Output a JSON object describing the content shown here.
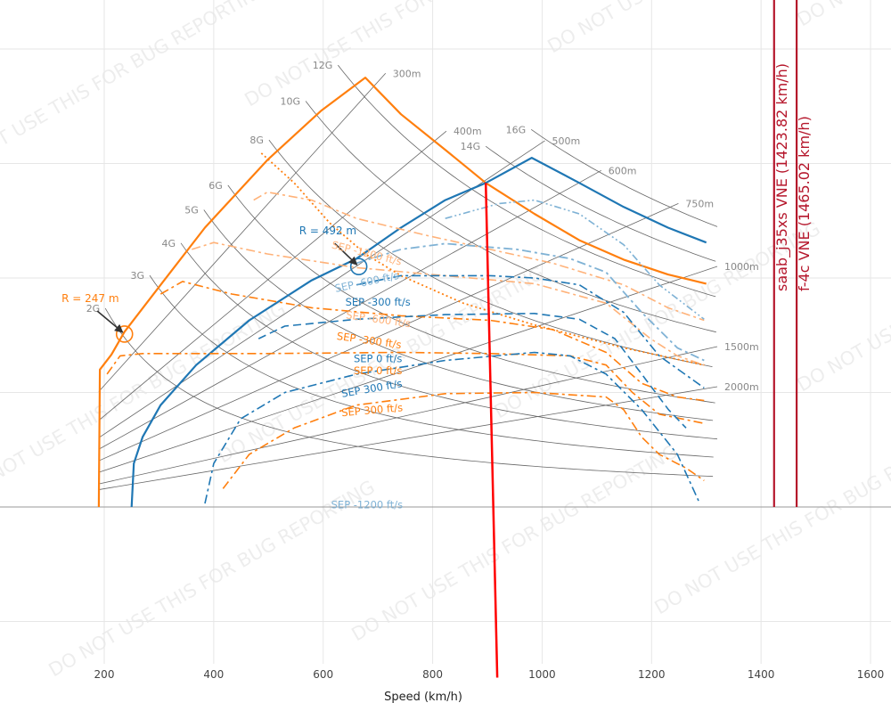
{
  "watermark": "DO NOT USE THIS FOR BUG REPORTING",
  "chart_data": {
    "type": "line",
    "xlabel": "Speed (km/h)",
    "ylabel": "",
    "xlim": [
      9.5,
      1637
    ],
    "ylim": [
      -13.7,
      44.3
    ],
    "xticks": [
      200,
      400,
      600,
      800,
      1000,
      1200,
      1400,
      1600
    ],
    "ygrid": [
      -10,
      0,
      10,
      20,
      30,
      40
    ],
    "grid": true,
    "colors": {
      "orange": "#ff7f0e",
      "orange_light": "#ffb279",
      "blue": "#1f77b4",
      "blue_light": "#7fb2d5",
      "vne": "#b5162b",
      "red": "#ff0000",
      "guide": "#666666"
    },
    "g_lines": [
      {
        "label": "2G",
        "n": 2,
        "v_start": 202
      },
      {
        "label": "3G",
        "n": 3,
        "v_start": 283
      },
      {
        "label": "4G",
        "n": 4,
        "v_start": 340
      },
      {
        "label": "5G",
        "n": 5,
        "v_start": 382
      },
      {
        "label": "6G",
        "n": 6,
        "v_start": 426
      },
      {
        "label": "8G",
        "n": 8,
        "v_start": 501
      },
      {
        "label": "10G",
        "n": 10,
        "v_start": 568
      },
      {
        "label": "12G",
        "n": 12,
        "v_start": 627
      },
      {
        "label": "14G",
        "n": 14,
        "v_start": 897
      },
      {
        "label": "16G",
        "n": 16,
        "v_start": 980
      }
    ],
    "radius_lines": [
      {
        "label": "300m",
        "r": 300,
        "v_end": 714
      },
      {
        "label": "400m",
        "r": 400,
        "v_end": 825
      },
      {
        "label": "500m",
        "r": 500,
        "v_end": 1005
      },
      {
        "label": "600m",
        "r": 600,
        "v_end": 1108
      },
      {
        "label": "750m",
        "r": 750,
        "v_end": 1249
      },
      {
        "label": "1000m",
        "r": 1000,
        "v_end": 1320
      },
      {
        "label": "1500m",
        "r": 1500,
        "v_end": 1320
      },
      {
        "label": "2000m",
        "r": 2000,
        "v_end": 1320
      }
    ],
    "series": [
      {
        "id": "orange-envelope",
        "color": "orange",
        "dash": "solid",
        "width": 2.2,
        "x": [
          190,
          192,
          213,
          237,
          303,
          384,
          498,
          596,
          677,
          742,
          823,
          897,
          986,
          1068,
          1149,
          1230,
          1300
        ],
        "y": [
          0,
          12.0,
          13.3,
          15.3,
          19.4,
          24.4,
          30.3,
          34.6,
          37.5,
          34.3,
          31.2,
          28.3,
          25.6,
          23.3,
          21.6,
          20.3,
          19.5
        ]
      },
      {
        "id": "blue-envelope",
        "color": "blue",
        "dash": "solid",
        "width": 2.2,
        "x": [
          250,
          254,
          270,
          303,
          368,
          465,
          579,
          661,
          742,
          823,
          897,
          981,
          1068,
          1149,
          1230,
          1300
        ],
        "y": [
          0,
          3.8,
          6.1,
          8.9,
          12.4,
          16.3,
          19.8,
          21.7,
          24.4,
          26.8,
          28.3,
          30.5,
          28.3,
          26.2,
          24.4,
          23.1
        ]
      },
      {
        "id": "orange-sep-minus-1200",
        "color": "orange_light",
        "dash": "dashdot",
        "width": 1.6,
        "x": [
          473,
          498,
          579,
          661,
          791,
          905,
          1019,
          1149,
          1230,
          1296
        ],
        "y": [
          26.8,
          27.5,
          26.8,
          25.2,
          23.7,
          22.5,
          21.3,
          19.4,
          17.4,
          16.3
        ]
      },
      {
        "id": "orange-sep-minus-600",
        "color": "orange_light",
        "dash": "dashdot",
        "width": 1.6,
        "x": [
          360,
          400,
          498,
          661,
          823,
          986,
          1117,
          1198,
          1247,
          1296
        ],
        "y": [
          22.5,
          23.1,
          22.1,
          20.9,
          20.2,
          19.5,
          17.8,
          14.7,
          13.2,
          12.4
        ]
      },
      {
        "id": "orange-sep-minus-300",
        "color": "orange",
        "dash": "dashdot",
        "width": 1.6,
        "x": [
          303,
          343,
          433,
          579,
          742,
          905,
          1019,
          1117,
          1182,
          1247,
          1296
        ],
        "y": [
          18.6,
          19.7,
          18.6,
          17.4,
          16.7,
          16.3,
          15.5,
          13.5,
          10.8,
          9.6,
          9.3
        ]
      },
      {
        "id": "orange-dotted",
        "color": "orange",
        "dash": "dot",
        "width": 1.8,
        "x": [
          487,
          547,
          612,
          677,
          742,
          856,
          986,
          1149,
          1296
        ],
        "y": [
          30.9,
          28.3,
          24.8,
          22.1,
          20.2,
          17.8,
          15.9,
          13.9,
          12.4
        ]
      },
      {
        "id": "orange-sep-0",
        "color": "orange",
        "dash": "dashdot",
        "width": 1.6,
        "x": [
          205,
          229,
          270,
          498,
          742,
          905,
          1051,
          1117,
          1165,
          1214,
          1296
        ],
        "y": [
          11.6,
          13.2,
          13.4,
          13.4,
          13.5,
          13.4,
          13.2,
          12.4,
          10.0,
          8.1,
          7.3
        ]
      },
      {
        "id": "orange-sep-300",
        "color": "orange",
        "dash": "dashdot",
        "width": 1.6,
        "x": [
          417,
          465,
          547,
          661,
          823,
          986,
          1117,
          1149,
          1182,
          1214,
          1263,
          1296
        ],
        "y": [
          1.6,
          4.6,
          6.9,
          8.9,
          9.9,
          10.0,
          9.6,
          8.5,
          6.1,
          4.6,
          3.4,
          2.3
        ]
      },
      {
        "id": "blue-sep-minus-1200",
        "color": "blue_light",
        "dash": "dashdotdot",
        "width": 1.6,
        "x": [
          823,
          921,
          986,
          1068,
          1149,
          1214,
          1296
        ],
        "y": [
          25.2,
          26.5,
          26.8,
          25.6,
          22.9,
          19.4,
          16.4
        ]
      },
      {
        "id": "blue-sep-minus-600",
        "color": "blue_light",
        "dash": "dashdot",
        "width": 1.8,
        "x": [
          661,
          742,
          823,
          954,
          1051,
          1117,
          1182,
          1247,
          1296
        ],
        "y": [
          21.3,
          22.5,
          23.0,
          22.5,
          21.7,
          20.5,
          17.0,
          13.9,
          12.8
        ]
      },
      {
        "id": "blue-sep-minus-300",
        "color": "blue",
        "dash": "dashdot",
        "width": 1.6,
        "x": [
          661,
          742,
          905,
          986,
          1068,
          1149,
          1214,
          1296
        ],
        "y": [
          19.4,
          20.2,
          20.2,
          20.0,
          19.4,
          17.0,
          13.2,
          10.4
        ]
      },
      {
        "id": "blue-sep-0",
        "color": "blue",
        "dash": "dash",
        "width": 1.6,
        "x": [
          482,
          530,
          661,
          823,
          986,
          1068,
          1133,
          1182,
          1231,
          1263
        ],
        "y": [
          14.7,
          15.8,
          16.4,
          16.8,
          16.9,
          16.4,
          14.7,
          11.6,
          8.5,
          6.9
        ]
      },
      {
        "id": "blue-sep-300",
        "color": "blue",
        "dash": "dashdot",
        "width": 1.6,
        "x": [
          384,
          400,
          449,
          530,
          661,
          823,
          986,
          1051,
          1117,
          1182,
          1247,
          1288
        ],
        "y": [
          0.3,
          3.8,
          7.7,
          10.0,
          11.6,
          12.8,
          13.5,
          13.2,
          11.6,
          8.5,
          4.6,
          0.3
        ]
      },
      {
        "id": "red-line",
        "color": "red",
        "dash": "solid",
        "width": 2.5,
        "x": [
          897,
          918
        ],
        "y": [
          28.3,
          -14.9
        ]
      }
    ],
    "vne_lines": [
      {
        "label": "saab_j35xs VNE (1423.82 km/h)",
        "v": 1423.82
      },
      {
        "label": "f-4c VNE (1465.02 km/h)",
        "v": 1465.02
      }
    ],
    "sep_labels": [
      {
        "text": "SEP -1200 ft/s",
        "color": "orange_light",
        "x": 678,
        "y": 25.6,
        "angle": 14
      },
      {
        "text": "SEP -600 ft/s",
        "color": "blue_light",
        "x": 681,
        "y": 22.0,
        "angle": -12
      },
      {
        "text": "SEP -300 ft/s",
        "color": "blue",
        "x": 700,
        "y": 20.4,
        "angle": 0
      },
      {
        "text": "SEP -600 ft/s",
        "color": "orange_light",
        "x": 700,
        "y": 19.2,
        "angle": 8
      },
      {
        "text": "SEP -300 ft/s",
        "color": "orange",
        "x": 683,
        "y": 17.2,
        "angle": 8
      },
      {
        "text": "SEP 0 ft/s",
        "color": "blue",
        "x": 700,
        "y": 16.4,
        "angle": 0
      },
      {
        "text": "SEP 0 ft/s",
        "color": "orange",
        "x": 700,
        "y": 13.6,
        "angle": 0
      },
      {
        "text": "SEP 300 ft/s",
        "color": "blue",
        "x": 690,
        "y": 11.6,
        "angle": -10
      },
      {
        "text": "SEP 300 ft/s",
        "color": "orange",
        "x": 690,
        "y": 9.4,
        "angle": -5
      },
      {
        "text": "SEP -1200 ft/s",
        "color": "blue_light",
        "x": 680,
        "y": -0.1,
        "angle": 0
      }
    ],
    "annotations": [
      {
        "text": "R = 247 m",
        "color": "orange",
        "point": [
          237,
          15.1
        ],
        "text_at": [
          122,
          17.9
        ]
      },
      {
        "text": "R = 492 m",
        "color": "blue",
        "point": [
          665,
          21.0
        ],
        "text_at": [
          556,
          23.8
        ]
      }
    ]
  }
}
